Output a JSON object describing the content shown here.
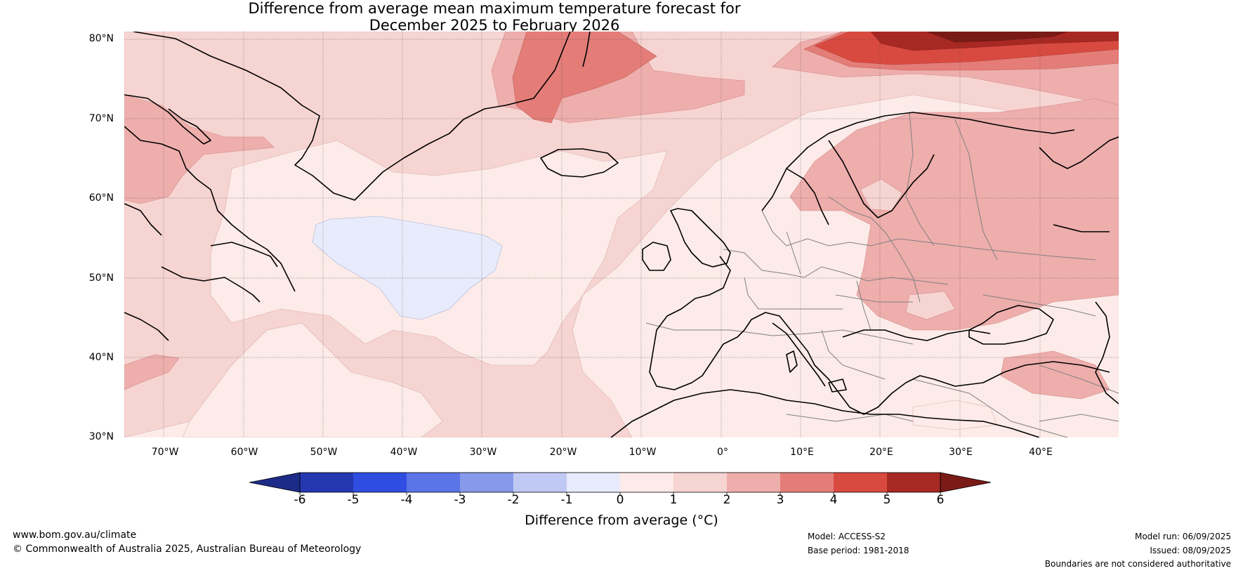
{
  "title": {
    "line1": "Difference from average mean maximum temperature forecast for",
    "line2": "December 2025 to February 2026"
  },
  "map": {
    "region": "North Atlantic and Europe",
    "lon_range": [
      -75,
      50
    ],
    "lat_range": [
      30,
      81
    ],
    "lat_labels": [
      "80°N",
      "70°N",
      "60°N",
      "50°N",
      "40°N",
      "30°N"
    ],
    "lon_labels": [
      "70°W",
      "60°W",
      "50°W",
      "40°W",
      "30°W",
      "20°W",
      "10°W",
      "0°",
      "10°E",
      "20°E",
      "30°E",
      "40°E"
    ]
  },
  "colorbar": {
    "label": "Difference from average (°C)",
    "ticks": [
      "-6",
      "-5",
      "-4",
      "-3",
      "-2",
      "-1",
      "0",
      "1",
      "2",
      "3",
      "4",
      "5",
      "6"
    ],
    "colors": [
      "#1c2b87",
      "#2437b0",
      "#2f4de0",
      "#5b74e6",
      "#8799ea",
      "#c0c9f3",
      "#e8ebfb",
      "#fcebe8",
      "#f6d4d2",
      "#eeaeac",
      "#e47d78",
      "#d84a40",
      "#a82823",
      "#7a1a17"
    ]
  },
  "footer": {
    "website": "www.bom.gov.au/climate",
    "copyright": "© Commonwealth of Australia 2025, Australian Bureau of Meteorology",
    "model": "Model: ACCESS-S2",
    "base_period": "Base period: 1981-2018",
    "model_run": "Model run: 06/09/2025",
    "issued": "Issued: 08/09/2025",
    "disclaimer": "Boundaries are not considered authoritative"
  }
}
